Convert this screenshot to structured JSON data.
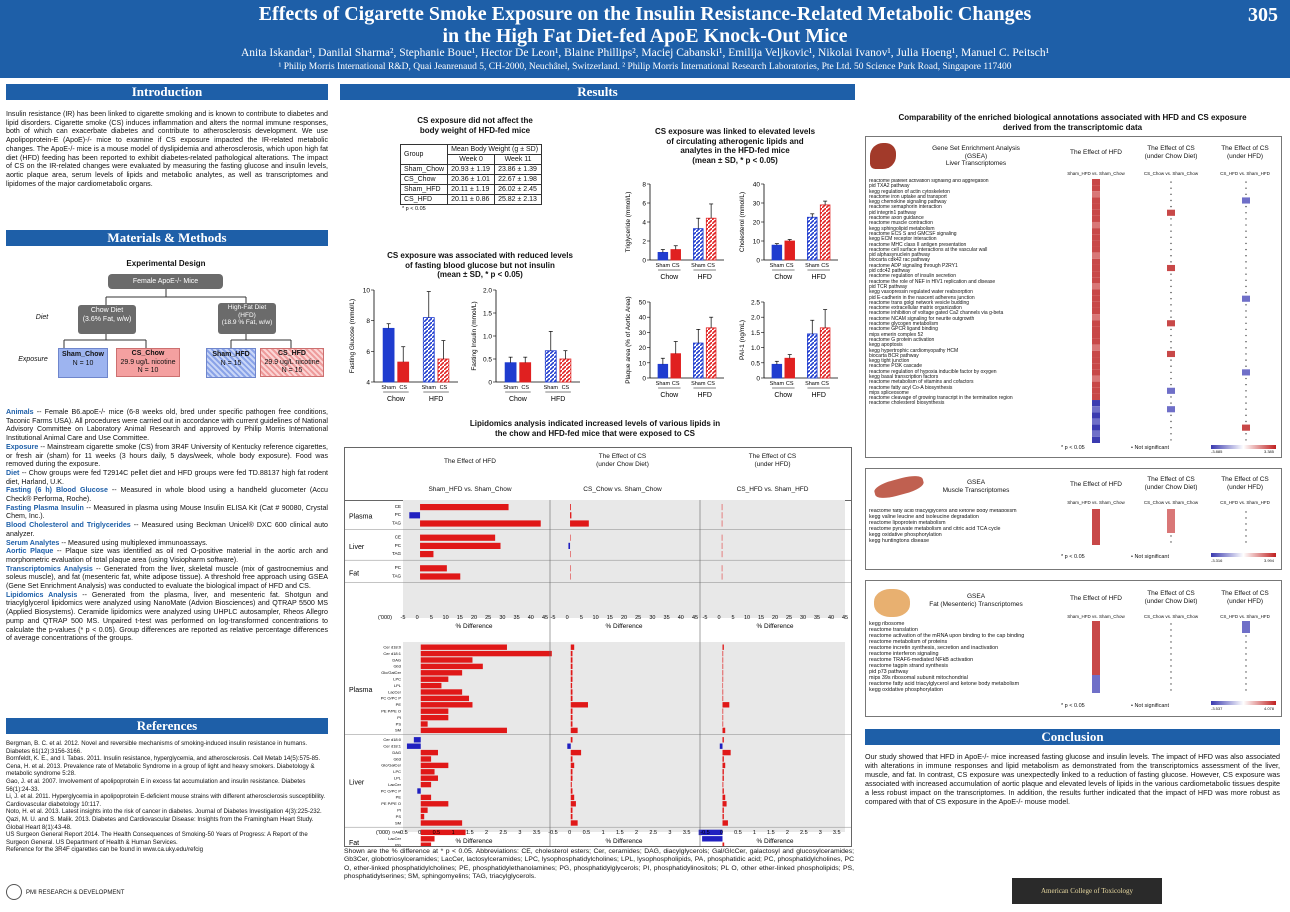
{
  "header": {
    "title_line1": "Effects of Cigarette Smoke Exposure on the Insulin Resistance-Related Metabolic Changes",
    "title_line2": "in the High Fat Diet-fed ApoE Knock-Out Mice",
    "poster_number": "305",
    "authors": "Anita Iskandar¹, Danilal Sharma², Stephanie Boue¹, Hector De Leon¹, Blaine Phillips², Maciej Cabanski¹, Emilija Veljkovic¹, Nikolai Ivanov¹, Julia Hoeng¹, Manuel C. Peitsch¹",
    "affiliations": "¹ Philip Morris International R&D, Quai Jeanrenaud 5, CH-2000, Neuchâtel, Switzerland.  ² Philip Morris International Research Laboratories, Pte Ltd. 50 Science Park Road, Singapore 117400"
  },
  "introduction": {
    "heading": "Introduction",
    "text": "Insulin resistance (IR) has been linked to cigarette smoking and is known to contribute to diabetes and lipid disorders. Cigarette smoke (CS) induces inflammation and alters the normal immune responses, both of which can exacerbate diabetes and contribute to atherosclerosis development. We use Apolipoprotein-E (ApoE)-/- mice to examine if CS exposure impacted the IR-related metabolic changes. The ApoE-/- mice is a mouse model of dyslipidemia and atherosclerosis, which upon high fat diet (HFD) feeding has been reported to exhibit diabetes-related pathological alterations. The impact of CS on the IR-related changes were evaluated by measuring the fasting glucose and insulin levels, aortic plaque area, serum levels of lipids and metabolic analytes, as well as transcriptomes and lipidomes of the major cardiometabolic organs."
  },
  "methods": {
    "heading": "Materials & Methods",
    "design_title": "Experimental Design",
    "female_box": "Female ApoE-/- Mice",
    "diet_label": "Diet",
    "exposure_label": "Exposure",
    "chow_diet": "Chow Diet\n(3.6% Fat, w/w)",
    "hfd_diet": "High-Fat Diet\n(HFD)\n(18.9 % Fat, w/w)",
    "groups": [
      {
        "name": "Sham_Chow",
        "detail": "",
        "n": "N = 10"
      },
      {
        "name": "CS_Chow",
        "detail": "29.9 ug/L nicotine",
        "n": "N = 10"
      },
      {
        "name": "Sham_HFD",
        "detail": "",
        "n": "N = 15"
      },
      {
        "name": "CS_HFD",
        "detail": "29.9 ug/L nicotine",
        "n": "N = 15"
      }
    ],
    "paragraphs": [
      {
        "label": "Animals",
        "text": " -- Female B6.apoE-/- mice (6-8 weeks old, bred under specific pathogen free conditions, Taconic Farms USA). All procedures were carried out in accordance with current guidelines of National Advisory Committee on Laboratory Animal Research and approved by Philip Morris International Institutional Animal Care and Use Committee."
      },
      {
        "label": "Exposure",
        "text": " -- Mainstream cigarette smoke (CS) from 3R4F University of Kentucky reference cigarettes, or fresh air (sham) for 11 weeks (3 hours daily, 5 days/week, whole body exposure). Food was removed during the exposure."
      },
      {
        "label": "Diet",
        "text": " -- Chow groups were fed T2914C pellet diet and HFD groups were fed TD.88137 high fat rodent diet, Harland, U.K."
      },
      {
        "label": "Fasting (6 h) Blood Glucose",
        "text": " -- Measured in whole blood using a handheld glucometer (Accu Check® Performa, Roche)."
      },
      {
        "label": "Fasting Plasma Insulin",
        "text": " -- Measured in plasma using Mouse Insulin ELISA Kit (Cat # 90080, Crystal Chem, Inc.)."
      },
      {
        "label": "Blood Cholesterol and Triglycerides",
        "text": " -- Measured using Beckman Unicel® DXC 600 clinical auto analyzer."
      },
      {
        "label": "Serum Analytes",
        "text": " -- Measured using multiplexed immunoassays."
      },
      {
        "label": "Aortic Plaque",
        "text": " -- Plaque size was identified as oil red O-positive material in the aortic arch and morphometric evaluation of total plaque area (using Visiopharm software)."
      },
      {
        "label": "Transcriptomics Analysis",
        "text": " -- Generated from the liver, skeletal muscle (mix of gastrocnemius and soleus muscle), and fat (mesenteric fat, white adipose tissue). A threshold free approach using GSEA (Gene Set Enrichment Analysis) was conducted to evaluate the biological impact of HFD and CS."
      },
      {
        "label": "Lipidomics Analysis",
        "text": " -- Generated from the plasma, liver, and mesenteric fat. Shotgun and triacylglycerol lipidomics were analyzed using NanoMate (Advion Biosciences) and QTRAP 5500 MS (Applied Biosystems). Ceramide lipidomics were analyzed using UHPLC autosampler, Rheos Allegro pump and QTRAP 500 MS. Unpaired t-test was performed on log-transformed concentrations to calculate the p-values (* p < 0.05). Group differences are reported as relative percentage differences of average concentrations of the groups."
      }
    ]
  },
  "references": {
    "heading": "References",
    "items": [
      "Bergman, B. C. et al. 2012. Novel and reversible mechanisms of smoking-induced insulin resistance in humans. Diabetes 61(12):3156-3166.",
      "Bornfeldt, K. E., and I. Tabas.   2011. Insulin resistance, hyperglycemia, and atherosclerosis. Cell Metab 14(5):575-85.",
      "Cena, H. et al. 2013. Prevalence rate of Metabolic Syndrome in a group of light and heavy smokers. Diabetology & metabolic syndrome 5:28.",
      "Gao, J. et al. 2007. Involvement of apolipoprotein E in excess fat accumulation and insulin resistance. Diabetes 56(1):24-33.",
      "Li, J. et al. 2011. Hyperglycemia in apolipoprotein E-deficient mouse strains with different atherosclerosis susceptibility. Cardiovascular diabetology 10:117.",
      "Noto, H. et al. 2013. Latest insights into the risk of cancer in diabetes. Journal of Diabetes Investigation 4(3):225-232.",
      "Qazi, M. U. and S. Malik. 2013. Diabetes and Cardiovascular Disease: Insights from the Framingham Heart Study. Global Heart 8(1):43-48.",
      "US Surgeon General Report 2014. The Health Consequences of Smoking-50 Years of Progress: A Report of the Surgeon General. US Department of Health & Human Services.",
      "Reference for the 3R4F cigarettes can be found in www.ca.uky.edu/refcig"
    ],
    "footer_logo": "PMI RESEARCH & DEVELOPMENT"
  },
  "results": {
    "heading": "Results",
    "bw_title": "CS exposure did not affect the\nbody weight of HFD-fed mice",
    "bw_table": {
      "h_group": "Group",
      "h_mean": "Mean Body Weight (g ± SD)",
      "h_w0": "Week 0",
      "h_w11": "Week 11",
      "rows": [
        [
          "Sham_Chow",
          "20.93 ± 1.19",
          "23.86 ± 1.39"
        ],
        [
          "CS_Chow",
          "20.36 ± 1.01",
          "22.67 ± 1.98"
        ],
        [
          "Sham_HFD",
          "20.11 ± 1.19",
          "26.02 ± 2.45"
        ],
        [
          "CS_HFD",
          "20.11 ± 0.86",
          "25.82 ± 2.13"
        ]
      ],
      "note": "* p < 0.05"
    },
    "glu_title": "CS exposure was associated with reduced levels\nof fasting blood glucose but not insulin\n(mean ± SD, * p < 0.05)",
    "lip_title": "CS exposure was linked to elevated levels\nof circulating atherogenic lipids and\nanalytes in the HFD-fed mice\n(mean ± SD, * p < 0.05)",
    "lipidomics_title": "Lipidomics analysis indicated increased levels of various lipids in\nthe chow and HFD-fed mice that were exposed to CS",
    "lipidomics_note": "Shown are the % difference at * p < 0.05. Abbreviations: CE, cholesterol esters; Cer, ceramides; DAG, diacylglycerols; Gal/GlcCer, galactosyl and glucosylceramides; Gb3Cer, globotriosylceramides; LacCer, lactosylceramides; LPC, lysophosphatidylcholines; LPL, lysophospholipids, PA, phosphatidic acid; PC, phosphatidylcholines, PC O, ether-linked phosphatidylcholines; PE, phosphatidylethanolamines; PG, phosphatidylglycerols; PI, phosphatidylinositols; PL O, other ether-linked phospholipids; PS, phosphatidylserines; SM, sphingomyelins; TAG, triacylglycerols.",
    "lipidomics_cols": [
      {
        "title": "The Effect of HFD",
        "sub": "Sham_HFD vs. Sham_Chow"
      },
      {
        "title": "The Effect of CS\n(under Chow Diet)",
        "sub": "CS_Chow vs. Sham_Chow"
      },
      {
        "title": "The Effect of CS\n(under HFD)",
        "sub": "CS_HFD vs. Sham_HFD"
      }
    ],
    "top_tissues": [
      {
        "name": "Plasma",
        "rows": [
          "CE",
          "PC",
          "TAG"
        ]
      },
      {
        "name": "Liver",
        "rows": [
          "CE",
          "PC",
          "TAG"
        ]
      },
      {
        "name": "Fat",
        "rows": [
          "PC",
          "TAG"
        ]
      }
    ],
    "bottom_tissues": [
      {
        "name": "Plasma",
        "rows": [
          "Cer d18:0",
          "Cer d18:1",
          "DAG",
          "Gb3",
          "Glc/GalCer",
          "LPC",
          "LPL",
          "LacCer",
          "PC O/PC P",
          "PE",
          "PE P/PE O",
          "PI",
          "PS",
          "SM"
        ]
      },
      {
        "name": "Liver",
        "rows": [
          "Cer d18:0",
          "Cer d18:1",
          "DAG",
          "Gb3",
          "Glc/GalCer",
          "LPC",
          "LPL",
          "LacCer",
          "PC O/PC P",
          "PE",
          "PE P/PE O",
          "PI",
          "PS",
          "SM"
        ]
      },
      {
        "name": "Fat",
        "rows": [
          "DAG",
          "LacCer",
          "PG",
          "PI"
        ]
      }
    ],
    "top_axis_ticks": [
      "('000)",
      "-5",
      "0",
      "5",
      "10",
      "15",
      "20",
      "25",
      "30",
      "35",
      "40",
      "45"
    ],
    "bottom_axis_ticks": [
      "('000)",
      "-0.5",
      "0",
      "0.5",
      "1",
      "1.5",
      "2",
      "2.5",
      "3",
      "3.5"
    ],
    "axis_title": "% Difference",
    "gsea_title": "Comparability of the enriched biological annotations associated with HFD and CS exposure\nderived from the transcriptomic data",
    "gsea_cols": [
      {
        "title": "The Effect of HFD",
        "sub": "Sham_HFD vs. Sham_Chow"
      },
      {
        "title": "The Effect of CS\n(under Chow Diet)",
        "sub": "CS_Chow vs. Sham_Chow"
      },
      {
        "title": "The Effect of CS\n(under HFD)",
        "sub": "CS_HFD vs. Sham_HFD"
      }
    ],
    "liver_panel": {
      "title": "Gene Set Enrichment Analysis\n(GSEA)\nLiver Transcriptomes",
      "rows": [
        "reactome platelet activation signaling and aggregation",
        "pid TXA2 pathway",
        "kegg regulation of actin cytoskeleton",
        "reactome iron uptake and transport",
        "kegg chemokine signaling pathway",
        "reactome semaphorin interaction",
        "pid integrin1 pathway",
        "reactome axon guidance",
        "reactome muscle contraction",
        "kegg sphingolipid metabolism",
        "reactome ECS S and GMCSF signaling",
        "kegg ECM receptor interaction",
        "reactome MHC class II antigen presentation",
        "reactome cell surface interactions at the vascular wall",
        "pid alphasynuclein pathway",
        "biocarta cdk42 rac pathway",
        "reactome ADP signaling through P2RY1",
        "pid cdc42 pathway",
        "reactome regulation of insulin secretion",
        "reactome the role of NEF in HIV1 replication and disease",
        "pid TCR pathway",
        "kegg vasopressin regulated water reabsorption",
        "pid E-cadherin in the nascent adherens junction",
        "reactome trans golgi network vesicle budding",
        "reactome extracellular matrix organization",
        "reactome inhibition of voltage gated Ca2 channels via g-beta",
        "reactome NCAM signaling for neurite outgrowth",
        "reactome glycogen metabolism",
        "reactome GPCR ligand binding",
        "mips emerin complex 52",
        "reactome G protein activation",
        "kegg apoptosis",
        "kegg hypertrophic cardiomyopathy HCM",
        "biocarta BCR pathway",
        "kegg tight junction",
        "reactome PI3K cascade",
        "reactome regulation of hypoxia inducible factor by oxygen",
        "kegg basal transcription factors",
        "reactome metabolism of vitamins and cofactors",
        "reactome fatty acyl Co-A biosynthesis",
        "mips spliceosome",
        "reactome cleavage of growing transcript in the termination region",
        "reactome cholesterol biosynthesis"
      ],
      "legend": [
        "* p < 0.05",
        "• Not significant"
      ],
      "scale": [
        "-3.885",
        "3.385"
      ]
    },
    "muscle_panel": {
      "title": "GSEA\nMuscle Transcriptomes",
      "rows": [
        "reactome fatty acid triacylglycerol and ketone body metabolism",
        "kegg valine leucine and isoleucine degradation",
        "reactome lipoprotein metabolism",
        "reactome pyruvate metabolism and citric acid TCA cycle",
        "kegg oxidative phosphorylation",
        "kegg huntingtons disease"
      ],
      "legend": [
        "* p < 0.05",
        "• Not significant"
      ],
      "scale": [
        "-3.316",
        "3.994"
      ]
    },
    "fat_panel": {
      "title": "GSEA\nFat (Mesenteric) Transcriptomes",
      "rows": [
        "kegg ribosome",
        "reactome translation",
        "reactome activation of the mRNA upon binding to the cap binding",
        "reactome metabolism of proteins",
        "reactome incretin synthesis, secretion and inactivation",
        "reactome interferon signaling",
        "reactome TRAF6-mediated NFkB activation",
        "reactome tagpin strand synthesis",
        "pid p73 pathway",
        "mips 39s ribosomal subunit mitochondrial",
        "reactome fatty acid triacylglycerol and ketone body metabolism",
        "kegg oxidative phosphorylation"
      ],
      "legend": [
        "* p < 0.05",
        "• Not significant"
      ],
      "scale": [
        "-3.537",
        "4.078"
      ]
    }
  },
  "bar_charts": {
    "group_labels": [
      "Sham",
      "CS",
      "Sham",
      "CS"
    ],
    "diet_labels": [
      "Chow",
      "HFD"
    ],
    "colors": {
      "sham_chow": "#1f3ccf",
      "cs_chow": "#e02020",
      "sham_hfd": "#1f3ccf",
      "cs_hfd": "#e02020"
    }
  },
  "chart_data": [
    {
      "type": "bar",
      "ylabel": "Fasting Glucose (mmol/L)",
      "ylim": [
        4,
        10
      ],
      "ticks": [
        "4",
        "6",
        "8",
        "10"
      ],
      "values": [
        7.5,
        5.3,
        8.2,
        5.5
      ],
      "errors": [
        0.3,
        1.0,
        1.7,
        1.2
      ]
    },
    {
      "type": "bar",
      "ylabel": "Fasting Insulin (mmol/L)",
      "ylim": [
        0,
        2.0
      ],
      "ticks": [
        "0",
        "0.5",
        "1.0",
        "1.5",
        "2.0"
      ],
      "values": [
        0.42,
        0.42,
        0.68,
        0.5
      ],
      "errors": [
        0.12,
        0.12,
        0.42,
        0.18
      ]
    },
    {
      "type": "bar",
      "ylabel": "Triglyceride (mmol/L)",
      "ylim": [
        0,
        8
      ],
      "ticks": [
        "0",
        "2",
        "4",
        "6",
        "8"
      ],
      "values": [
        0.8,
        1.1,
        3.3,
        4.4
      ],
      "errors": [
        0.3,
        0.4,
        1.1,
        1.5
      ]
    },
    {
      "type": "bar",
      "ylabel": "Cholesterol (mmol/L)",
      "ylim": [
        0,
        40
      ],
      "ticks": [
        "0",
        "10",
        "20",
        "30",
        "40"
      ],
      "values": [
        7.8,
        10.0,
        22.5,
        29.0
      ],
      "errors": [
        0.8,
        0.8,
        1.8,
        2.0
      ]
    },
    {
      "type": "bar",
      "ylabel": "Plaque area (% of Aortic Area)",
      "ylim": [
        0,
        50
      ],
      "ticks": [
        "0",
        "10",
        "20",
        "30",
        "40",
        "50"
      ],
      "values": [
        9,
        16,
        23,
        33
      ],
      "errors": [
        4,
        8,
        9,
        7
      ]
    },
    {
      "type": "bar",
      "ylabel": "PAI-1 (ng/mL)",
      "ylim": [
        0,
        2.5
      ],
      "ticks": [
        "0",
        "0.5",
        "1.0",
        "1.5",
        "2.0",
        "2.5"
      ],
      "values": [
        0.45,
        0.65,
        1.45,
        1.65
      ],
      "errors": [
        0.1,
        0.12,
        0.45,
        0.6
      ]
    }
  ],
  "conclusion": {
    "heading": "Conclusion",
    "text": "Our study showed that HFD in ApoE-/- mice increased fasting glucose and insulin levels. The impact of HFD was also associated with alterations in immune responses and lipid metabolism as demonstrated from the transcriptomics assessment of the liver, muscle, and fat.  In contrast, CS exposure was unexpectedly linked to a reduction of fasting glucose. However, CS exposure was associated with increased accumulation of aortic plaque and elevated levels of lipids in the various cardiometabolic tissues despite a less robust impact on the transcriptomes. In addition, the results further indicated that the impact of HFD was more robust as compared with that of CS exposure in the ApoE-/- mouse model.",
    "footer_logo": "American College of Toxicology"
  }
}
